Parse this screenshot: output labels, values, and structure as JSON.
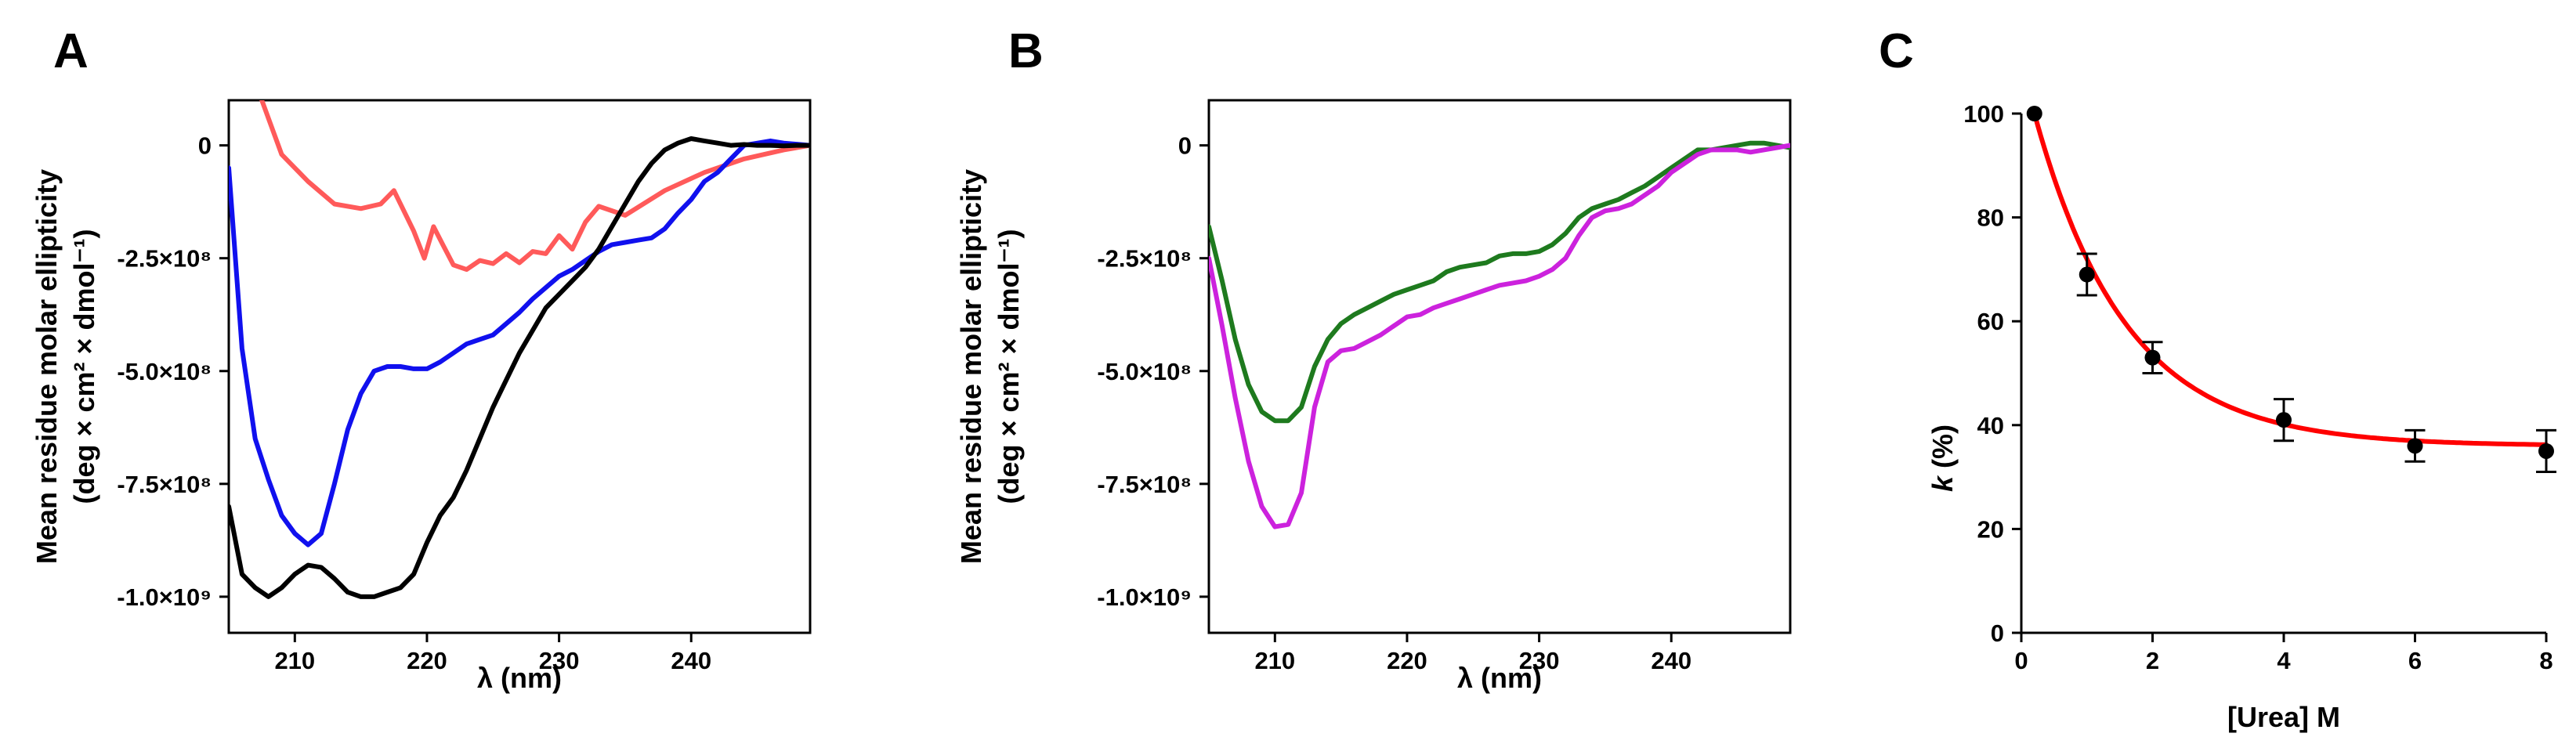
{
  "chart_data": [
    {
      "panel": "A",
      "type": "line",
      "xlabel": "λ (nm)",
      "ylabel_line1": "Mean residue molar ellipticity",
      "ylabel_line2": "(deg × cm² × dmol⁻¹)",
      "xlim": [
        205,
        249
      ],
      "ylim": [
        -1080000000.0,
        100000000.0
      ],
      "xticks": [
        210,
        220,
        230,
        240
      ],
      "yticks": [
        {
          "value": 0,
          "label": "0"
        },
        {
          "value": -250000000.0,
          "label": "-2.5×10⁸"
        },
        {
          "value": -500000000.0,
          "label": "-5.0×10⁸"
        },
        {
          "value": -750000000.0,
          "label": "-7.5×10⁸"
        },
        {
          "value": -1000000000.0,
          "label": "-1.0×10⁹"
        }
      ],
      "series": [
        {
          "name": "red",
          "color": "#ff5a5a",
          "x": [
            207.5,
            209,
            211,
            213,
            215,
            216.5,
            217.5,
            219,
            219.8,
            220.5,
            221.2,
            222,
            223,
            224,
            225,
            226,
            227,
            228,
            229,
            230,
            231,
            232,
            233,
            235,
            238,
            241,
            244,
            247,
            249
          ],
          "y": [
            100000000.0,
            -20000000.0,
            -80000000.0,
            -130000000.0,
            -140000000.0,
            -130000000.0,
            -100000000.0,
            -190000000.0,
            -250000000.0,
            -180000000.0,
            -220000000.0,
            -265000000.0,
            -275000000.0,
            -255000000.0,
            -262000000.0,
            -240000000.0,
            -260000000.0,
            -235000000.0,
            -240000000.0,
            -200000000.0,
            -230000000.0,
            -170000000.0,
            -135000000.0,
            -155000000.0,
            -100000000.0,
            -60000000.0,
            -30000000.0,
            -10000000.0,
            0
          ]
        },
        {
          "name": "blue",
          "color": "#1010ee",
          "x": [
            205,
            206,
            207,
            208,
            209,
            210,
            211,
            212,
            213,
            214,
            215,
            216,
            217,
            218,
            219,
            220,
            221,
            222,
            223,
            224,
            225,
            226,
            227,
            228,
            229,
            230,
            231,
            232,
            233,
            234,
            235,
            236,
            237,
            238,
            239,
            240,
            241,
            242,
            243,
            244,
            246,
            247,
            249
          ],
          "y": [
            -50000000.0,
            -450000000.0,
            -650000000.0,
            -740000000.0,
            -820000000.0,
            -860000000.0,
            -885000000.0,
            -860000000.0,
            -750000000.0,
            -630000000.0,
            -550000000.0,
            -500000000.0,
            -490000000.0,
            -490000000.0,
            -495000000.0,
            -495000000.0,
            -480000000.0,
            -460000000.0,
            -440000000.0,
            -430000000.0,
            -420000000.0,
            -395000000.0,
            -370000000.0,
            -340000000.0,
            -315000000.0,
            -290000000.0,
            -275000000.0,
            -255000000.0,
            -235000000.0,
            -220000000.0,
            -215000000.0,
            -210000000.0,
            -205000000.0,
            -185000000.0,
            -150000000.0,
            -120000000.0,
            -80000000.0,
            -60000000.0,
            -30000000.0,
            0,
            10000000.0,
            5000000.0,
            0
          ]
        },
        {
          "name": "black",
          "color": "#000000",
          "x": [
            205,
            206,
            207,
            208,
            209,
            210,
            211,
            212,
            213,
            214,
            215,
            216,
            217,
            218,
            219,
            220,
            221,
            222,
            223,
            224,
            225,
            226,
            227,
            228,
            229,
            230,
            231,
            232,
            233,
            234,
            235,
            236,
            237,
            238,
            239,
            240,
            241,
            242,
            243,
            244,
            245,
            246,
            247,
            248,
            249
          ],
          "y": [
            -800000000.0,
            -950000000.0,
            -980000000.0,
            -1000000000.0,
            -980000000.0,
            -950000000.0,
            -930000000.0,
            -935000000.0,
            -960000000.0,
            -990000000.0,
            -1000000000.0,
            -1000000000.0,
            -990000000.0,
            -980000000.0,
            -950000000.0,
            -880000000.0,
            -820000000.0,
            -780000000.0,
            -720000000.0,
            -650000000.0,
            -580000000.0,
            -520000000.0,
            -460000000.0,
            -410000000.0,
            -360000000.0,
            -330000000.0,
            -300000000.0,
            -270000000.0,
            -230000000.0,
            -180000000.0,
            -130000000.0,
            -80000000.0,
            -40000000.0,
            -10000000.0,
            5000000.0,
            15000000.0,
            10000000.0,
            5000000.0,
            0,
            2000000.0,
            0,
            0,
            -1000000.0,
            0,
            0
          ]
        }
      ]
    },
    {
      "panel": "B",
      "type": "line",
      "xlabel": "λ (nm)",
      "ylabel_line1": "Mean residue molar ellipticity",
      "ylabel_line2": "(deg × cm² × dmol⁻¹)",
      "xlim": [
        205,
        249
      ],
      "ylim": [
        -1080000000.0,
        100000000.0
      ],
      "xticks": [
        210,
        220,
        230,
        240
      ],
      "yticks": [
        {
          "value": 0,
          "label": "0"
        },
        {
          "value": -250000000.0,
          "label": "-2.5×10⁸"
        },
        {
          "value": -500000000.0,
          "label": "-5.0×10⁸"
        },
        {
          "value": -750000000.0,
          "label": "-7.5×10⁸"
        },
        {
          "value": -1000000000.0,
          "label": "-1.0×10⁹"
        }
      ],
      "series": [
        {
          "name": "green",
          "color": "#1e7a1e",
          "x": [
            205,
            206,
            207,
            208,
            209,
            210,
            211,
            212,
            213,
            214,
            215,
            216,
            217,
            218,
            219,
            220,
            221,
            222,
            223,
            224,
            225,
            226,
            227,
            228,
            229,
            230,
            231,
            232,
            233,
            234,
            235,
            236,
            237,
            238,
            239,
            240,
            241,
            242,
            243,
            244,
            245,
            246,
            247,
            248,
            249
          ],
          "y": [
            -180000000.0,
            -300000000.0,
            -430000000.0,
            -530000000.0,
            -590000000.0,
            -610000000.0,
            -610000000.0,
            -580000000.0,
            -490000000.0,
            -430000000.0,
            -395000000.0,
            -375000000.0,
            -360000000.0,
            -345000000.0,
            -330000000.0,
            -320000000.0,
            -310000000.0,
            -300000000.0,
            -280000000.0,
            -270000000.0,
            -265000000.0,
            -260000000.0,
            -245000000.0,
            -240000000.0,
            -240000000.0,
            -235000000.0,
            -220000000.0,
            -195000000.0,
            -160000000.0,
            -140000000.0,
            -130000000.0,
            -120000000.0,
            -105000000.0,
            -90000000.0,
            -70000000.0,
            -50000000.0,
            -30000000.0,
            -10000000.0,
            -10000000.0,
            -5000000.0,
            0,
            5000000.0,
            5000000.0,
            0,
            -5000000.0
          ]
        },
        {
          "name": "magenta",
          "color": "#cc22dd",
          "x": [
            205,
            206,
            207,
            208,
            209,
            210,
            211,
            212,
            213,
            214,
            215,
            216,
            217,
            218,
            219,
            220,
            221,
            222,
            223,
            224,
            225,
            226,
            227,
            228,
            229,
            230,
            231,
            232,
            233,
            234,
            235,
            236,
            237,
            238,
            239,
            240,
            241,
            242,
            243,
            244,
            245,
            246,
            247,
            248,
            249
          ],
          "y": [
            -250000000.0,
            -400000000.0,
            -560000000.0,
            -700000000.0,
            -800000000.0,
            -845000000.0,
            -840000000.0,
            -770000000.0,
            -580000000.0,
            -480000000.0,
            -455000000.0,
            -450000000.0,
            -435000000.0,
            -420000000.0,
            -400000000.0,
            -380000000.0,
            -375000000.0,
            -360000000.0,
            -350000000.0,
            -340000000.0,
            -330000000.0,
            -320000000.0,
            -310000000.0,
            -305000000.0,
            -300000000.0,
            -290000000.0,
            -275000000.0,
            -250000000.0,
            -200000000.0,
            -160000000.0,
            -145000000.0,
            -140000000.0,
            -130000000.0,
            -110000000.0,
            -90000000.0,
            -60000000.0,
            -40000000.0,
            -20000000.0,
            -10000000.0,
            -10000000.0,
            -10000000.0,
            -15000000.0,
            -10000000.0,
            -5000000.0,
            0
          ]
        }
      ]
    },
    {
      "panel": "C",
      "type": "scatter",
      "xlabel": "[Urea] M",
      "ylabel_italic": "k",
      "ylabel_rest": " (%)",
      "xlim": [
        0,
        8
      ],
      "ylim": [
        0,
        100
      ],
      "xticks": [
        0,
        2,
        4,
        6,
        8
      ],
      "yticks": [
        0,
        20,
        40,
        60,
        80,
        100
      ],
      "points": {
        "x": [
          0.2,
          1,
          2,
          4,
          6,
          8
        ],
        "y": [
          100,
          69,
          53,
          41,
          36,
          35
        ],
        "err": [
          0,
          4,
          3,
          4,
          3,
          4
        ]
      },
      "fit": {
        "color": "#ff0000",
        "model": "y = plateau + span * exp(-k * (x - 0.2))",
        "plateau": 36,
        "span": 64,
        "k": 0.72,
        "x_range": [
          0.2,
          8
        ]
      }
    }
  ]
}
